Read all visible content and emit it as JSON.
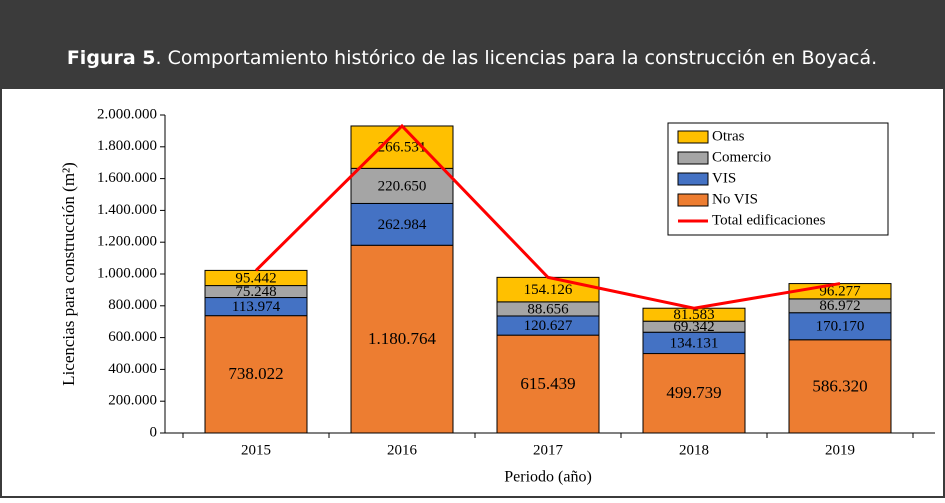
{
  "header": {
    "label": "Figura 5",
    "title": ". Comportamiento histórico de las licencias para la construcción en Boyacá."
  },
  "chart_data": {
    "type": "bar",
    "stacked": true,
    "ylabel": "Licencias para construcción (m²)",
    "xlabel": "Periodo (año)",
    "categories": [
      "2015",
      "2016",
      "2017",
      "2018",
      "2019"
    ],
    "series": [
      {
        "name": "No VIS",
        "color": "#ED7D31",
        "values": [
          738022,
          1180764,
          615439,
          499739,
          586320
        ],
        "value_labels": [
          "738.022",
          "1.180.764",
          "615.439",
          "499.739",
          "586.320"
        ]
      },
      {
        "name": "VIS",
        "color": "#4472C4",
        "values": [
          113974,
          262984,
          120627,
          134131,
          170170
        ],
        "value_labels": [
          "113.974",
          "262.984",
          "120.627",
          "134.131",
          "170.170"
        ]
      },
      {
        "name": "Comercio",
        "color": "#A5A5A5",
        "values": [
          75248,
          220650,
          88656,
          69342,
          86972
        ],
        "value_labels": [
          "75.248",
          "220.650",
          "88.656",
          "69.342",
          "86.972"
        ]
      },
      {
        "name": "Otras",
        "color": "#FFC000",
        "values": [
          95442,
          266531,
          154126,
          81583,
          96277
        ],
        "value_labels": [
          "95.442",
          "266.531",
          "154.126",
          "81.583",
          "96.277"
        ]
      },
      {
        "name": "Total edificaciones",
        "type": "line",
        "color": "#FF0000",
        "values": [
          1022686,
          1930929,
          978848,
          784795,
          939739
        ]
      }
    ],
    "ylim": [
      0,
      2000000
    ],
    "yticks": [
      0,
      {
        "value": 200000,
        "label": "200.000"
      },
      {
        "value": 400000,
        "label": "400.000"
      },
      {
        "value": 600000,
        "label": "600.000"
      },
      {
        "value": 800000,
        "label": "800.000"
      },
      {
        "value": 1000000,
        "label": "1.000.000"
      },
      {
        "value": 1200000,
        "label": "1.200.000"
      },
      {
        "value": 1400000,
        "label": "1.400.000"
      },
      {
        "value": 1600000,
        "label": "1.600.000"
      },
      {
        "value": 1800000,
        "label": "1.800.000"
      },
      {
        "value": 2000000,
        "label": "2.000.000"
      }
    ],
    "legend": "upper right"
  }
}
